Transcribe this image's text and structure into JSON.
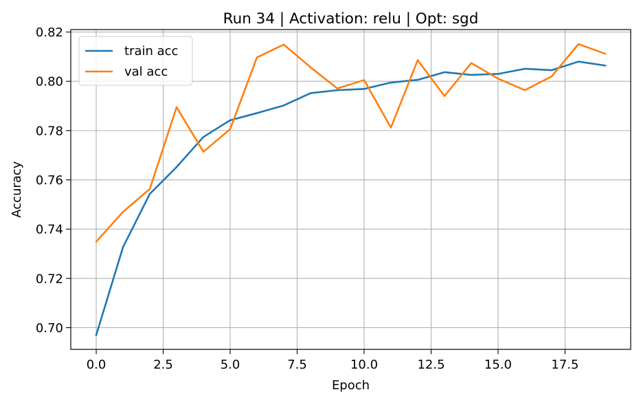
{
  "chart_data": {
    "type": "line",
    "title": "Run 34 | Activation: relu | Opt: sgd",
    "xlabel": "Epoch",
    "ylabel": "Accuracy",
    "xlim": [
      -0.95,
      19.95
    ],
    "ylim": [
      0.6912,
      0.821
    ],
    "xticks": [
      0.0,
      2.5,
      5.0,
      7.5,
      10.0,
      12.5,
      15.0,
      17.5
    ],
    "xtick_labels": [
      "0.0",
      "2.5",
      "5.0",
      "7.5",
      "10.0",
      "12.5",
      "15.0",
      "17.5"
    ],
    "yticks": [
      0.7,
      0.72,
      0.74,
      0.76,
      0.78,
      0.8,
      0.82
    ],
    "ytick_labels": [
      "0.70",
      "0.72",
      "0.74",
      "0.76",
      "0.78",
      "0.80",
      "0.82"
    ],
    "grid": true,
    "legend_position": "top-left",
    "x": [
      0,
      1,
      2,
      3,
      4,
      5,
      6,
      7,
      8,
      9,
      10,
      11,
      12,
      13,
      14,
      15,
      16,
      17,
      18,
      19
    ],
    "series": [
      {
        "name": "train acc",
        "color": "#1f77b4",
        "values": [
          0.697,
          0.7327,
          0.7543,
          0.7652,
          0.7774,
          0.7842,
          0.7871,
          0.7902,
          0.7952,
          0.7964,
          0.7969,
          0.7995,
          0.8006,
          0.8037,
          0.8026,
          0.803,
          0.8051,
          0.8045,
          0.808,
          0.8064
        ]
      },
      {
        "name": "val acc",
        "color": "#ff7f0e",
        "values": [
          0.7349,
          0.747,
          0.7563,
          0.7895,
          0.7714,
          0.7806,
          0.8097,
          0.8149,
          0.8057,
          0.7971,
          0.8005,
          0.7812,
          0.8086,
          0.794,
          0.8074,
          0.8011,
          0.7964,
          0.802,
          0.8151,
          0.8112
        ]
      }
    ]
  }
}
